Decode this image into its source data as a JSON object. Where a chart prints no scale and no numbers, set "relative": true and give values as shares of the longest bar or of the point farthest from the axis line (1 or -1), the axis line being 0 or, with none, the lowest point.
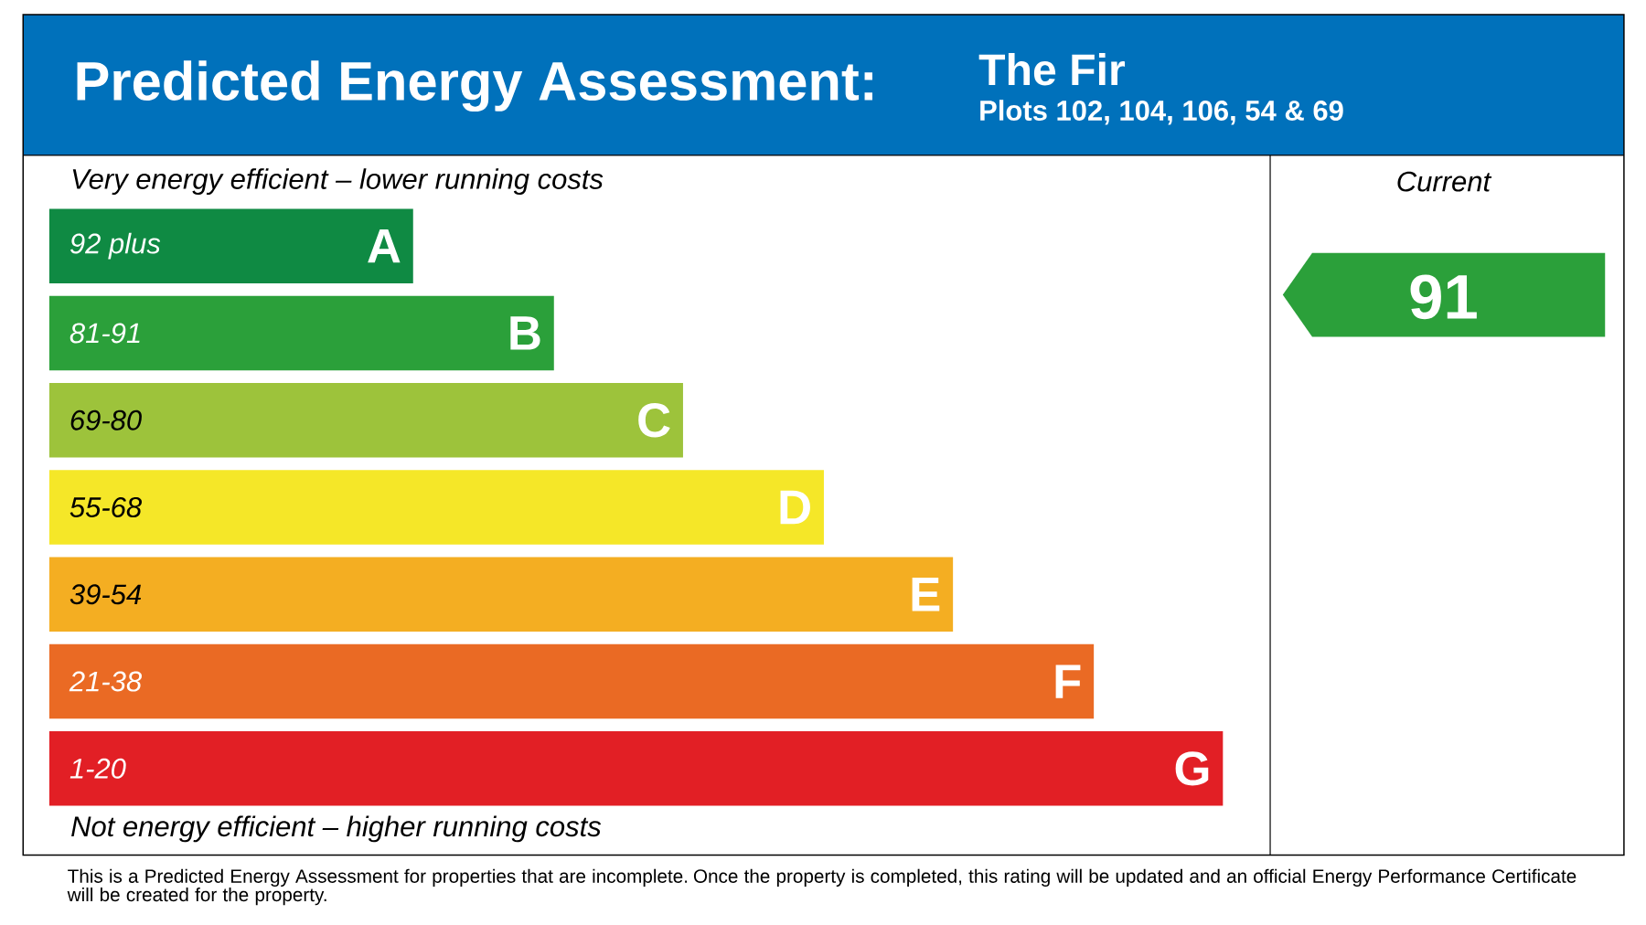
{
  "chart_data": {
    "type": "bar",
    "orientation": "horizontal",
    "relative": true,
    "title": "Predicted Energy Assessment:",
    "subtitle": "The Fir",
    "categories": [
      "92 plus",
      "81-91",
      "69-80",
      "55-68",
      "39-54",
      "21-38",
      "1-20"
    ],
    "values": [
      0.31,
      0.43,
      0.54,
      0.66,
      0.77,
      0.89,
      1.0
    ],
    "colors": [
      "#0f8a43",
      "#2ba03a",
      "#9dc33b",
      "#f5e728",
      "#f4ae22",
      "#ea6a24",
      "#e21f25"
    ],
    "annotations": [
      {
        "text": "A",
        "y": "92 plus"
      },
      {
        "text": "B",
        "y": "81-91"
      },
      {
        "text": "C",
        "y": "69-80"
      },
      {
        "text": "D",
        "y": "55-68"
      },
      {
        "text": "E",
        "y": "39-54"
      },
      {
        "text": "F",
        "y": "21-38"
      },
      {
        "text": "G",
        "y": "1-20"
      },
      "Plots 102, 104, 106, 54 & 69",
      "Very energy efficient – lower running costs",
      "Not energy efficient – higher running costs",
      "Current",
      "91",
      "This is a Predicted Energy Assessment for properties that are incomplete. Once the property is completed, this rating will be updated and an official Energy Performance Certificate will be created for the property."
    ]
  }
}
